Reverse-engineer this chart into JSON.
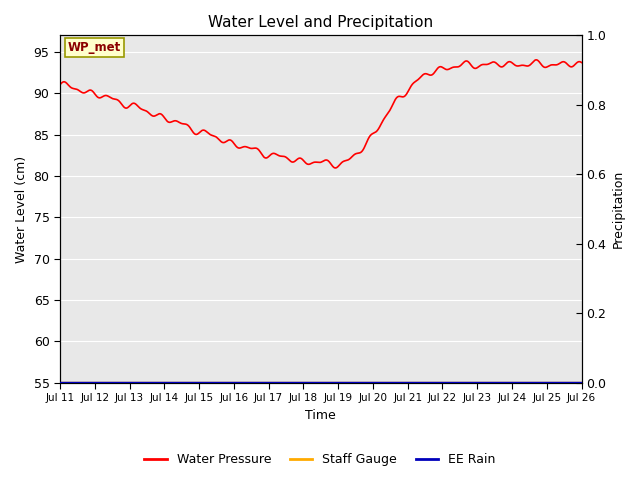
{
  "title": "Water Level and Precipitation",
  "xlabel": "Time",
  "ylabel_left": "Water Level (cm)",
  "ylabel_right": "Precipitation",
  "ylim_left": [
    55,
    97
  ],
  "ylim_right": [
    0.0,
    1.0
  ],
  "yticks_left": [
    55,
    60,
    65,
    70,
    75,
    80,
    85,
    90,
    95
  ],
  "yticks_right": [
    0.0,
    0.2,
    0.4,
    0.6,
    0.8,
    1.0
  ],
  "bg_color": "#e8e8e8",
  "line_color_pressure": "#ff0000",
  "line_color_staff": "#ffaa00",
  "line_color_rain": "#0000bb",
  "legend_labels": [
    "Water Pressure",
    "Staff Gauge",
    "EE Rain"
  ],
  "annotation_text": "WP_met",
  "annotation_bg": "#ffffcc",
  "annotation_border": "#999900"
}
